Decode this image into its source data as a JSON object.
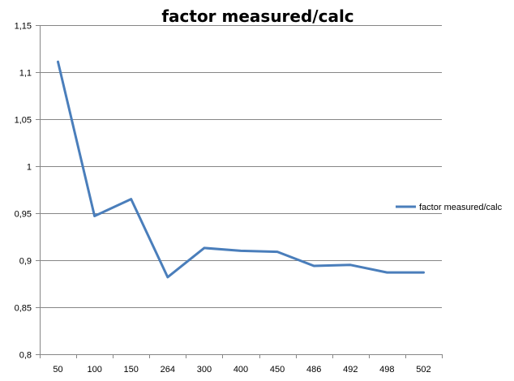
{
  "chart_data": {
    "type": "line",
    "title": "factor measured/calc",
    "xlabel": "",
    "ylabel": "",
    "categories": [
      "50",
      "100",
      "150",
      "264",
      "300",
      "400",
      "450",
      "486",
      "492",
      "498",
      "502"
    ],
    "y_tick_labels": [
      "0,8",
      "0,85",
      "0,9",
      "0,95",
      "1",
      "1,05",
      "1,1",
      "1,15"
    ],
    "ylim": [
      0.8,
      1.15
    ],
    "y_step": 0.05,
    "grid": "horizontal",
    "legend_position": "right",
    "series": [
      {
        "name": "factor measured/calc",
        "color": "#4a7ebb",
        "values": [
          1.111,
          0.947,
          0.965,
          0.882,
          0.913,
          0.91,
          0.909,
          0.894,
          0.895,
          0.887,
          0.887
        ]
      }
    ]
  }
}
